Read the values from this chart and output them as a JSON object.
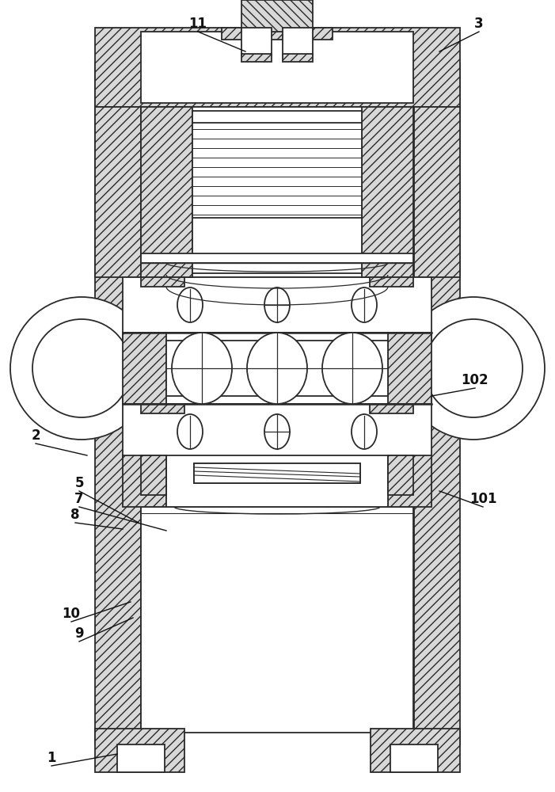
{
  "bg": "#ffffff",
  "lc": "#2a2a2a",
  "lw": 1.3,
  "lw2": 1.8,
  "hatch_fc": "#d8d8d8",
  "fig_w": 7.01,
  "fig_h": 10.0,
  "annotations": [
    [
      "1",
      148,
      952,
      65,
      967
    ],
    [
      "2",
      110,
      575,
      45,
      560
    ],
    [
      "3",
      555,
      65,
      605,
      40
    ],
    [
      "5",
      175,
      660,
      100,
      620
    ],
    [
      "7",
      210,
      670,
      100,
      640
    ],
    [
      "8",
      155,
      668,
      95,
      660
    ],
    [
      "9",
      168,
      780,
      100,
      810
    ],
    [
      "10",
      165,
      760,
      90,
      785
    ],
    [
      "11",
      310,
      65,
      250,
      40
    ],
    [
      "101",
      555,
      620,
      610,
      640
    ],
    [
      "102",
      545,
      500,
      600,
      490
    ]
  ]
}
